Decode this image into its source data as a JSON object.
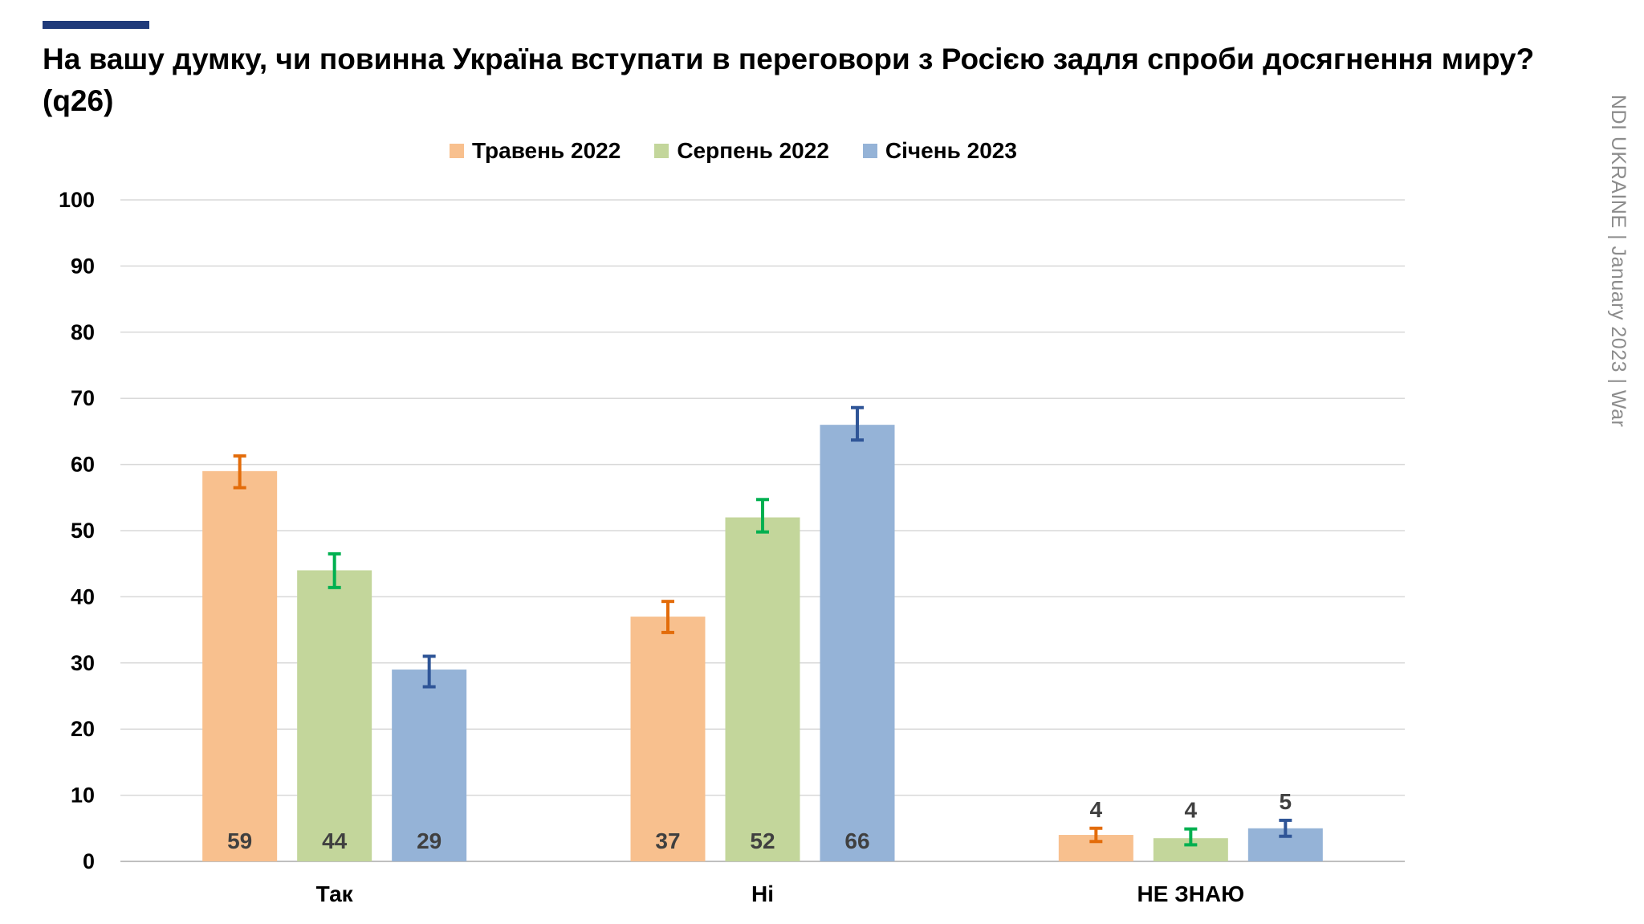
{
  "title": "На вашу думку, чи повинна Україна вступати в переговори з Росією задля спроби досягнення миру? (q26)",
  "side_note": "NDI UKRAINE | January 2023 | War",
  "colors": {
    "accent": "#1f3a7a",
    "grid": "#d9d9d9",
    "axis": "#bfbfbf"
  },
  "chart_data": {
    "type": "bar",
    "categories": [
      "Так",
      "Ні",
      "НЕ ЗНАЮ"
    ],
    "ylim": [
      0,
      100
    ],
    "yticks": [
      0,
      10,
      20,
      30,
      40,
      50,
      60,
      70,
      80,
      90,
      100
    ],
    "grid": true,
    "legend_position": "top-center",
    "series": [
      {
        "name": "Травень 2022",
        "color": "#f8c08e",
        "error_color": "#e36c0a",
        "values": [
          59,
          37,
          4
        ],
        "labels": [
          "59",
          "37",
          "4"
        ],
        "error_low": [
          56.5,
          34.6,
          3
        ],
        "error_high": [
          61.3,
          39.3,
          5
        ]
      },
      {
        "name": "Серпень 2022",
        "color": "#c3d69b",
        "error_color": "#00b050",
        "values": [
          44,
          52,
          3.5
        ],
        "labels": [
          "44",
          "52",
          "4"
        ],
        "error_low": [
          41.4,
          49.8,
          2.5
        ],
        "error_high": [
          46.5,
          54.7,
          4.9
        ]
      },
      {
        "name": "Січень 2023",
        "color": "#95b3d7",
        "error_color": "#2f5597",
        "values": [
          29,
          66,
          5
        ],
        "labels": [
          "29",
          "66",
          "5"
        ],
        "error_low": [
          26.4,
          63.7,
          3.8
        ],
        "error_high": [
          31,
          68.6,
          6.2
        ]
      }
    ]
  }
}
